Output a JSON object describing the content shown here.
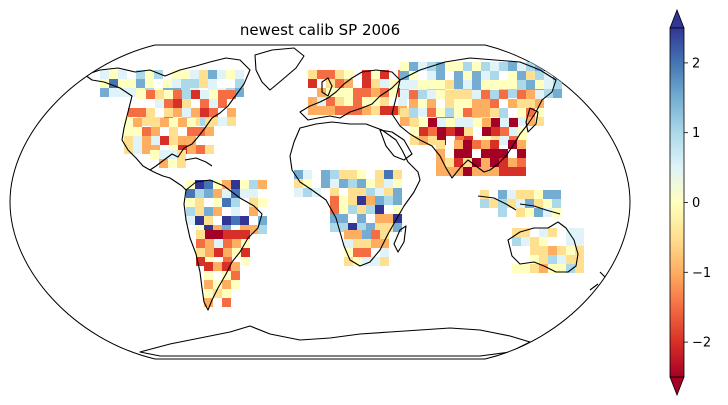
{
  "map": {
    "title": "newest calib SP 2006",
    "projection": "robinson",
    "coastline_color": "#000000",
    "colormap": "RdYlBu",
    "missing_color": "#ffffff"
  },
  "colorbar": {
    "min": -2.5,
    "max": 2.5,
    "extend": "both",
    "ticks": [
      2,
      1,
      0,
      -1,
      -2
    ],
    "tick_labels": [
      "2",
      "1",
      "0",
      "−1",
      "−2"
    ],
    "stops": [
      "#a50026",
      "#d73027",
      "#f46d43",
      "#fdae61",
      "#fee090",
      "#ffffbf",
      "#e0f3f8",
      "#abd9e9",
      "#74add1",
      "#4575b4",
      "#313695"
    ]
  }
}
